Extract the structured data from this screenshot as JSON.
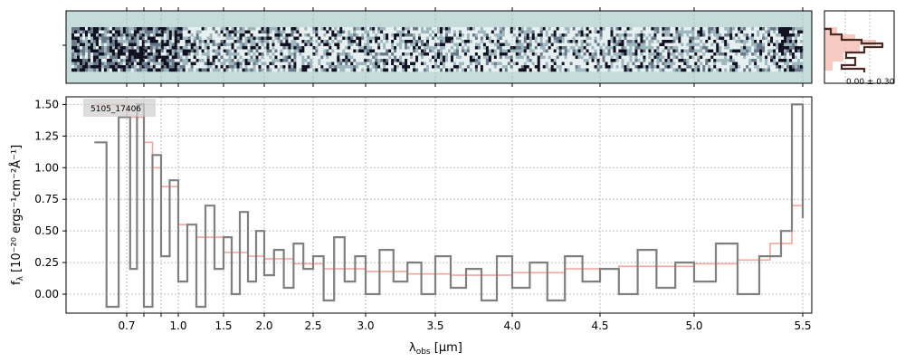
{
  "chart_data": {
    "type": "line",
    "xlabel": "λ",
    "xlabel_sub": "obs",
    "xlabel_unit": " [μm]",
    "ylabel": "f",
    "ylabel_sub": "λ",
    "ylabel_unit": " [10⁻²⁰ ergs⁻¹cm⁻²Å⁻¹]",
    "annotation": "5105_17406",
    "histogram_label": "0.00 ± 0.30",
    "ylim": [
      -0.15,
      1.56
    ],
    "x_ticks": [
      "0.7",
      "0.8",
      "0.9",
      "1.0",
      "1.5",
      "2.0",
      "2.5",
      "3.0",
      "3.5",
      "4.0",
      "4.5",
      "5.0",
      "5.5"
    ],
    "x_tick_labels": [
      "0.7",
      "",
      "",
      "1.0",
      "1.5",
      "2.0",
      "2.5",
      "3.0",
      "3.5",
      "4.0",
      "4.5",
      "5.0",
      "5.5"
    ],
    "y_ticks": [
      "0.00",
      "0.25",
      "0.50",
      "0.75",
      "1.00",
      "1.25",
      "1.50"
    ],
    "grid": true,
    "series": [
      {
        "color": "#808080",
        "style": "steps",
        "x": [
          0.62,
          0.65,
          0.68,
          0.72,
          0.76,
          0.8,
          0.85,
          0.9,
          0.95,
          1.0,
          1.1,
          1.2,
          1.3,
          1.4,
          1.5,
          1.6,
          1.7,
          1.8,
          1.9,
          2.0,
          2.1,
          2.2,
          2.3,
          2.4,
          2.5,
          2.6,
          2.7,
          2.8,
          2.9,
          3.0,
          3.1,
          3.2,
          3.3,
          3.4,
          3.5,
          3.6,
          3.7,
          3.8,
          3.9,
          4.0,
          4.1,
          4.2,
          4.3,
          4.4,
          4.5,
          4.6,
          4.7,
          4.8,
          4.9,
          5.0,
          5.1,
          5.2,
          5.3,
          5.4,
          5.45,
          5.5
        ],
        "y": [
          1.2,
          -0.1,
          1.4,
          0.2,
          1.5,
          -0.1,
          1.1,
          0.3,
          0.9,
          0.1,
          0.55,
          -0.1,
          0.7,
          0.2,
          0.45,
          0.0,
          0.65,
          0.1,
          0.5,
          0.15,
          0.35,
          0.05,
          0.4,
          0.2,
          0.3,
          -0.05,
          0.45,
          0.1,
          0.3,
          0.0,
          0.35,
          0.1,
          0.25,
          0.0,
          0.3,
          0.05,
          0.2,
          -0.05,
          0.3,
          0.05,
          0.25,
          -0.05,
          0.3,
          0.1,
          0.2,
          0.0,
          0.35,
          0.05,
          0.25,
          0.1,
          0.4,
          0.0,
          0.3,
          0.5,
          1.5,
          0.6
        ]
      },
      {
        "color": "#f4a6a0",
        "style": "steps",
        "x": [
          0.62,
          0.7,
          0.8,
          0.85,
          0.9,
          1.0,
          1.2,
          1.5,
          1.8,
          2.0,
          2.3,
          2.6,
          3.0,
          3.3,
          3.6,
          4.0,
          4.3,
          4.6,
          5.0,
          5.2,
          5.35,
          5.45,
          5.5
        ],
        "y": [
          1.5,
          1.4,
          1.2,
          1.0,
          0.85,
          0.55,
          0.45,
          0.33,
          0.3,
          0.28,
          0.24,
          0.2,
          0.18,
          0.16,
          0.15,
          0.17,
          0.2,
          0.22,
          0.24,
          0.27,
          0.4,
          0.7,
          1.5
        ]
      }
    ]
  }
}
